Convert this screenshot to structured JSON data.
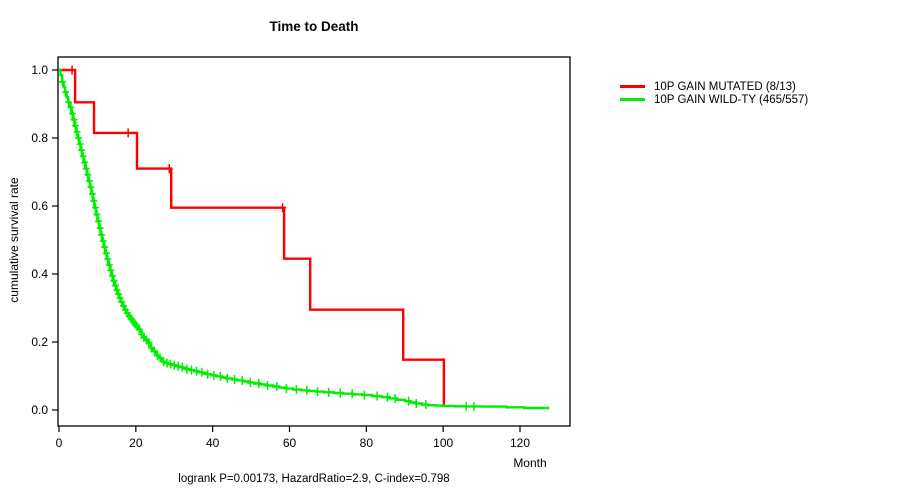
{
  "chart_data": {
    "type": "line",
    "subtype": "kaplan-meier-step-survival",
    "title": "Time to Death",
    "xlabel": "Month",
    "ylabel": "cumulative survival rate",
    "annotation": "logrank P=0.00173, HazardRatio=2.9, C-index=0.798",
    "x_ticks": [
      0,
      20,
      40,
      60,
      80,
      100,
      120
    ],
    "y_ticks": [
      "0.0",
      "0.2",
      "0.4",
      "0.6",
      "0.8",
      "1.0"
    ],
    "xlim": [
      0,
      133
    ],
    "ylim": [
      0.0,
      1.0
    ],
    "grid": false,
    "legend_position": "right-outside",
    "series": [
      {
        "name": "10P GAIN MUTATED (8/13)",
        "color": "#ff0000",
        "steps": [
          [
            0,
            1.0
          ],
          [
            4.2,
            0.905
          ],
          [
            9.1,
            0.815
          ],
          [
            20.3,
            0.71
          ],
          [
            29.2,
            0.595
          ],
          [
            58.6,
            0.445
          ],
          [
            65.4,
            0.295
          ],
          [
            89.6,
            0.148
          ],
          [
            100.2,
            0.01
          ]
        ],
        "censor_marks": [
          3.4,
          18,
          28.7,
          58.2
        ]
      },
      {
        "name": "10P GAIN WILD-TY (465/557)",
        "color": "#00ee00",
        "steps": [
          [
            0,
            1.0
          ],
          [
            0.4,
            0.985
          ],
          [
            0.8,
            0.965
          ],
          [
            1.2,
            0.95
          ],
          [
            1.6,
            0.935
          ],
          [
            2,
            0.92
          ],
          [
            2.4,
            0.905
          ],
          [
            2.8,
            0.89
          ],
          [
            3.2,
            0.872
          ],
          [
            3.6,
            0.854
          ],
          [
            4,
            0.836
          ],
          [
            4.4,
            0.818
          ],
          [
            4.8,
            0.8
          ],
          [
            5.2,
            0.782
          ],
          [
            5.6,
            0.764
          ],
          [
            6,
            0.746
          ],
          [
            6.4,
            0.728
          ],
          [
            6.8,
            0.71
          ],
          [
            7.2,
            0.692
          ],
          [
            7.6,
            0.674
          ],
          [
            8,
            0.655
          ],
          [
            8.4,
            0.635
          ],
          [
            8.8,
            0.615
          ],
          [
            9.2,
            0.595
          ],
          [
            9.6,
            0.575
          ],
          [
            10,
            0.555
          ],
          [
            10.4,
            0.535
          ],
          [
            10.8,
            0.515
          ],
          [
            11.2,
            0.497
          ],
          [
            11.6,
            0.479
          ],
          [
            12,
            0.461
          ],
          [
            12.4,
            0.444
          ],
          [
            12.8,
            0.427
          ],
          [
            13.2,
            0.411
          ],
          [
            13.6,
            0.395
          ],
          [
            14,
            0.38
          ],
          [
            14.4,
            0.366
          ],
          [
            14.8,
            0.353
          ],
          [
            15.2,
            0.341
          ],
          [
            15.6,
            0.329
          ],
          [
            16,
            0.318
          ],
          [
            16.5,
            0.306
          ],
          [
            17,
            0.295
          ],
          [
            17.5,
            0.285
          ],
          [
            18,
            0.276
          ],
          [
            18.5,
            0.268
          ],
          [
            19,
            0.26
          ],
          [
            19.5,
            0.253
          ],
          [
            20,
            0.246
          ],
          [
            20.5,
            0.238
          ],
          [
            21,
            0.23
          ],
          [
            21.5,
            0.222
          ],
          [
            22,
            0.214
          ],
          [
            22.5,
            0.206
          ],
          [
            23,
            0.198
          ],
          [
            23.5,
            0.19
          ],
          [
            24,
            0.182
          ],
          [
            24.5,
            0.174
          ],
          [
            25,
            0.167
          ],
          [
            25.5,
            0.16
          ],
          [
            26,
            0.153
          ],
          [
            26.5,
            0.147
          ],
          [
            27,
            0.142
          ],
          [
            27.7,
            0.138
          ],
          [
            28.5,
            0.135
          ],
          [
            29.4,
            0.132
          ],
          [
            30.3,
            0.129
          ],
          [
            31.2,
            0.126
          ],
          [
            32.2,
            0.123
          ],
          [
            33.2,
            0.12
          ],
          [
            34.2,
            0.117
          ],
          [
            35.2,
            0.114
          ],
          [
            36.3,
            0.111
          ],
          [
            37.4,
            0.108
          ],
          [
            38.5,
            0.105
          ],
          [
            39.7,
            0.102
          ],
          [
            41,
            0.099
          ],
          [
            42.3,
            0.096
          ],
          [
            43.6,
            0.093
          ],
          [
            45,
            0.09
          ],
          [
            46.4,
            0.087
          ],
          [
            47.8,
            0.084
          ],
          [
            49.3,
            0.081
          ],
          [
            50.8,
            0.078
          ],
          [
            52.4,
            0.075
          ],
          [
            54,
            0.072
          ],
          [
            55.7,
            0.069
          ],
          [
            57.4,
            0.066
          ],
          [
            59.2,
            0.063
          ],
          [
            61,
            0.06
          ],
          [
            63,
            0.058
          ],
          [
            65,
            0.056
          ],
          [
            67,
            0.054
          ],
          [
            69,
            0.052
          ],
          [
            71.5,
            0.05
          ],
          [
            74,
            0.048
          ],
          [
            76.5,
            0.046
          ],
          [
            79,
            0.044
          ],
          [
            81.5,
            0.041
          ],
          [
            84,
            0.038
          ],
          [
            86,
            0.034
          ],
          [
            88,
            0.03
          ],
          [
            90,
            0.026
          ],
          [
            91.5,
            0.022
          ],
          [
            93,
            0.019
          ],
          [
            94.5,
            0.016
          ],
          [
            96,
            0.014
          ],
          [
            98,
            0.013
          ],
          [
            100,
            0.012
          ],
          [
            103,
            0.011
          ],
          [
            106,
            0.0105
          ],
          [
            110,
            0.01
          ],
          [
            116.4,
            0.008
          ],
          [
            121.1,
            0.006
          ],
          [
            127.6,
            0.006
          ]
        ],
        "censor_marks": [
          0.9,
          1.7,
          2.5,
          3.1,
          3.5,
          3.9,
          4.3,
          4.7,
          5.1,
          5.5,
          5.9,
          6.3,
          6.7,
          7.1,
          7.5,
          7.9,
          8.3,
          8.7,
          9.1,
          9.5,
          9.9,
          10.3,
          10.7,
          11.1,
          11.5,
          11.9,
          12.3,
          12.7,
          13.1,
          13.5,
          13.9,
          14.3,
          14.7,
          15.1,
          15.5,
          15.9,
          16.3,
          16.8,
          17.3,
          17.8,
          18.3,
          18.8,
          19.3,
          19.8,
          20.3,
          20.9,
          21.5,
          22.1,
          22.8,
          23.4,
          24.1,
          24.8,
          25.6,
          26.3,
          27.2,
          28.1,
          29,
          30,
          31,
          32.1,
          33.3,
          34.5,
          35.8,
          37.2,
          38.7,
          40.3,
          42,
          43.8,
          45.7,
          47.7,
          49.8,
          52,
          54.3,
          56.7,
          59.2,
          61.8,
          64.5,
          67.3,
          70.2,
          73.2,
          76.3,
          79.5,
          82.8,
          85.5,
          87.5,
          91,
          93,
          95.5,
          106,
          108
        ]
      }
    ]
  }
}
